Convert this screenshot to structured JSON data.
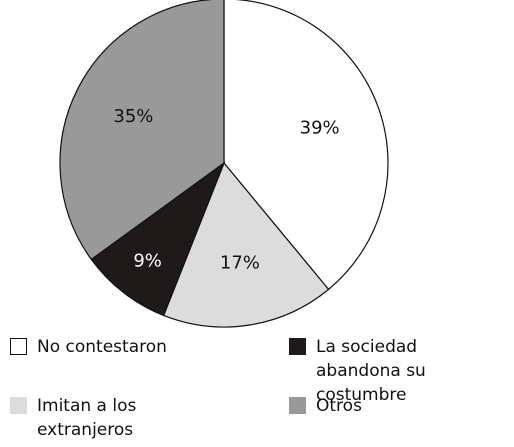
{
  "chart_data": {
    "type": "pie",
    "categories": [
      "No contestaron",
      "Imitan a los extranjeros",
      "La sociedad abandona su costumbre",
      "Otros"
    ],
    "values": [
      39,
      17,
      9,
      35
    ],
    "value_labels": [
      "39%",
      "17%",
      "9%",
      "35%"
    ],
    "colors": [
      "#ffffff",
      "#dcdcdc",
      "#1e1a1a",
      "#999999"
    ]
  }
}
